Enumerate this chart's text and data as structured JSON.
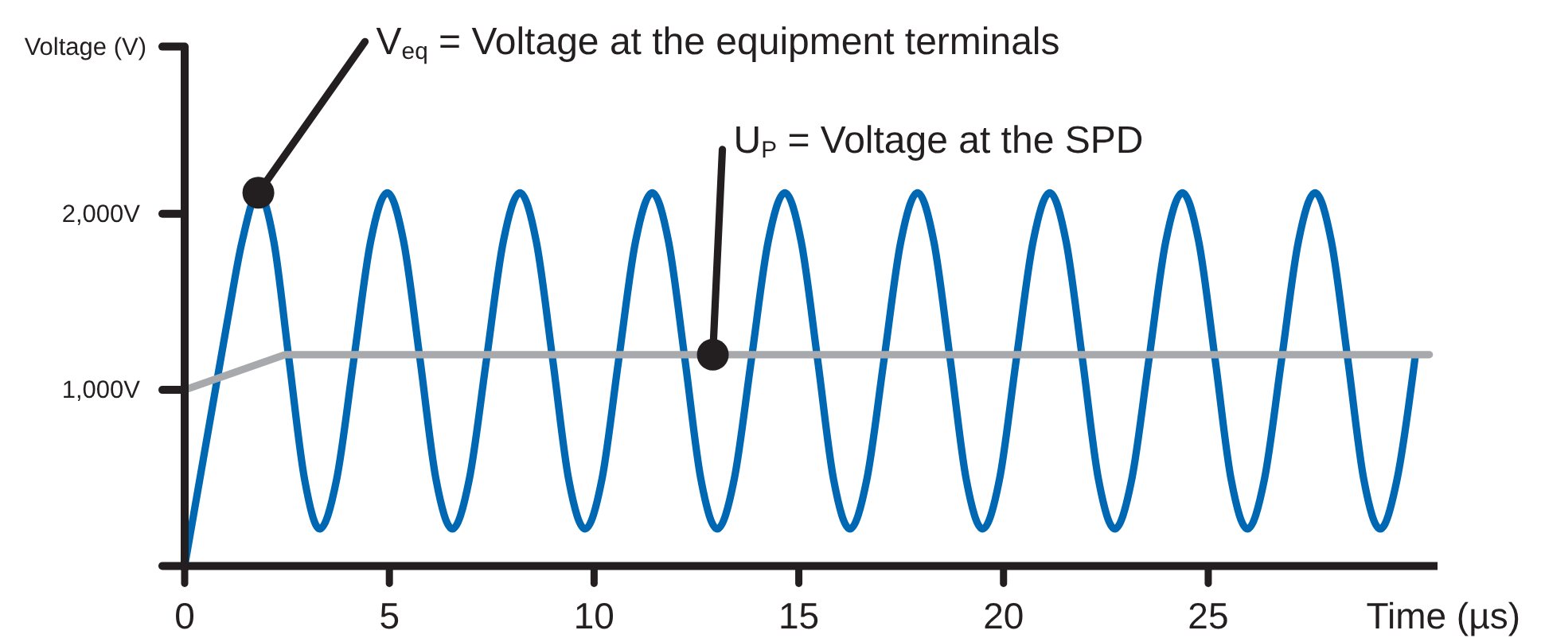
{
  "chart_data": {
    "type": "line",
    "xlabel": "Time (µs)",
    "ylabel": "Voltage (V)",
    "xlim": [
      0,
      30.6
    ],
    "ylim": [
      0,
      2950
    ],
    "xticks": [
      0,
      5,
      10,
      15,
      20,
      25
    ],
    "yticks": [
      {
        "value": 0,
        "label": null
      },
      {
        "value": 1000,
        "label": "1,000V"
      },
      {
        "value": 2000,
        "label": "2,000V"
      },
      {
        "value": 2950,
        "label": null
      }
    ],
    "series": [
      {
        "color": "#0068b3",
        "x": [
          0,
          1.05,
          1.4,
          1.8,
          2.18,
          2.55,
          2.93,
          3.3,
          3.71,
          4.13,
          4.54,
          4.95,
          5.35,
          5.75,
          6.14,
          6.54,
          6.95,
          7.37,
          7.78,
          8.19,
          8.59,
          8.99,
          9.38,
          9.78,
          10.19,
          10.6,
          11.01,
          11.42,
          11.82,
          12.22,
          12.61,
          13.01,
          13.42,
          13.84,
          14.25,
          14.66,
          15.06,
          15.46,
          15.85,
          16.25,
          16.66,
          17.08,
          17.49,
          17.9,
          18.3,
          18.7,
          19.09,
          19.49,
          19.9,
          20.31,
          20.72,
          21.13,
          21.53,
          21.93,
          22.32,
          22.72,
          23.13,
          23.55,
          23.96,
          24.37,
          24.77,
          25.17,
          25.56,
          25.96,
          26.37,
          26.79,
          27.2,
          27.61,
          28.01,
          28.41,
          28.8,
          29.2,
          29.61,
          30.05
        ],
        "values": [
          0,
          1400,
          1840,
          2120,
          1840,
          1170,
          490,
          210,
          490,
          1170,
          1840,
          2120,
          1840,
          1170,
          490,
          210,
          490,
          1170,
          1840,
          2120,
          1840,
          1170,
          490,
          210,
          490,
          1170,
          1840,
          2120,
          1840,
          1170,
          490,
          210,
          490,
          1170,
          1840,
          2120,
          1840,
          1170,
          490,
          210,
          490,
          1170,
          1840,
          2120,
          1840,
          1170,
          490,
          210,
          490,
          1170,
          1840,
          2120,
          1840,
          1170,
          490,
          210,
          490,
          1170,
          1840,
          2120,
          1840,
          1170,
          490,
          210,
          490,
          1170,
          1840,
          2120,
          1840,
          1170,
          490,
          210,
          490,
          1180
        ]
      },
      {
        "color": "#a7a9ac",
        "x": [
          0,
          2.45,
          30.4
        ],
        "values": [
          1000,
          1200,
          1200
        ]
      }
    ],
    "annotations": [
      {
        "text": "V$_{eq}$ = Voltage at the equipment terminals",
        "x": 1.8,
        "y": 2120
      },
      {
        "text": "U$_{P}$ = Voltage at the SPD",
        "x": 12.9,
        "y": 1200
      }
    ]
  }
}
